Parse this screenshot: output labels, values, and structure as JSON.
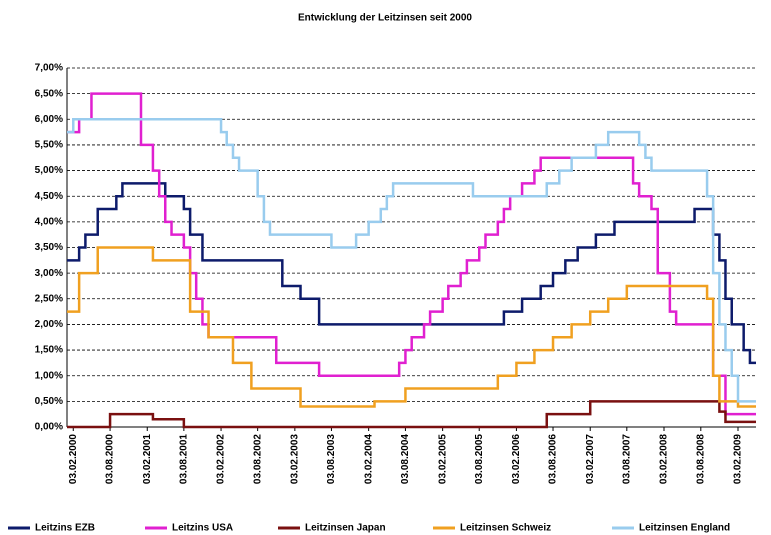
{
  "chart_data": {
    "type": "line",
    "title": "Entwicklung der Leitzinsen seit 2000",
    "x": [
      "2000-01-03",
      "2000-02-03",
      "2000-03-03",
      "2000-04-03",
      "2000-05-03",
      "2000-06-03",
      "2000-07-03",
      "2000-08-03",
      "2000-09-03",
      "2000-10-03",
      "2000-11-03",
      "2000-12-03",
      "2001-01-03",
      "2001-02-03",
      "2001-03-03",
      "2001-04-03",
      "2001-05-03",
      "2001-06-03",
      "2001-07-03",
      "2001-08-03",
      "2001-09-03",
      "2001-10-03",
      "2001-11-03",
      "2001-12-03",
      "2002-01-03",
      "2002-02-03",
      "2002-03-03",
      "2002-04-03",
      "2002-05-03",
      "2002-06-03",
      "2002-07-03",
      "2002-08-03",
      "2002-09-03",
      "2002-10-03",
      "2002-11-03",
      "2002-12-03",
      "2003-01-03",
      "2003-02-03",
      "2003-03-03",
      "2003-04-03",
      "2003-05-03",
      "2003-06-03",
      "2003-07-03",
      "2003-08-03",
      "2003-09-03",
      "2003-10-03",
      "2003-11-03",
      "2003-12-03",
      "2004-01-03",
      "2004-02-03",
      "2004-03-03",
      "2004-04-03",
      "2004-05-03",
      "2004-06-03",
      "2004-07-03",
      "2004-08-03",
      "2004-09-03",
      "2004-10-03",
      "2004-11-03",
      "2004-12-03",
      "2005-01-03",
      "2005-02-03",
      "2005-03-03",
      "2005-04-03",
      "2005-05-03",
      "2005-06-03",
      "2005-07-03",
      "2005-08-03",
      "2005-09-03",
      "2005-10-03",
      "2005-11-03",
      "2005-12-03",
      "2006-01-03",
      "2006-02-03",
      "2006-03-03",
      "2006-04-03",
      "2006-05-03",
      "2006-06-03",
      "2006-07-03",
      "2006-08-03",
      "2006-09-03",
      "2006-10-03",
      "2006-11-03",
      "2006-12-03",
      "2007-01-03",
      "2007-02-03",
      "2007-03-03",
      "2007-04-03",
      "2007-05-03",
      "2007-06-03",
      "2007-07-03",
      "2007-08-03",
      "2007-09-03",
      "2007-10-03",
      "2007-11-03",
      "2007-12-03",
      "2008-01-03",
      "2008-02-03",
      "2008-03-03",
      "2008-04-03",
      "2008-05-03",
      "2008-06-03",
      "2008-07-03",
      "2008-08-03",
      "2008-09-03",
      "2008-10-03",
      "2008-11-03",
      "2008-12-03",
      "2009-01-03",
      "2009-02-03",
      "2009-03-03",
      "2009-04-03"
    ],
    "series": [
      {
        "name": "Leitzins EZB",
        "color": "#0d1b6b",
        "values": [
          3.25,
          3.25,
          3.5,
          3.75,
          3.75,
          4.25,
          4.25,
          4.25,
          4.5,
          4.75,
          4.75,
          4.75,
          4.75,
          4.75,
          4.75,
          4.75,
          4.5,
          4.5,
          4.5,
          4.25,
          3.75,
          3.75,
          3.25,
          3.25,
          3.25,
          3.25,
          3.25,
          3.25,
          3.25,
          3.25,
          3.25,
          3.25,
          3.25,
          3.25,
          3.25,
          2.75,
          2.75,
          2.75,
          2.5,
          2.5,
          2.5,
          2,
          2,
          2,
          2,
          2,
          2,
          2,
          2,
          2,
          2,
          2,
          2,
          2,
          2,
          2,
          2,
          2,
          2,
          2,
          2,
          2,
          2,
          2,
          2,
          2,
          2,
          2,
          2,
          2,
          2,
          2.25,
          2.25,
          2.25,
          2.5,
          2.5,
          2.5,
          2.75,
          2.75,
          3,
          3,
          3.25,
          3.25,
          3.5,
          3.5,
          3.5,
          3.75,
          3.75,
          3.75,
          4,
          4,
          4,
          4,
          4,
          4,
          4,
          4,
          4,
          4,
          4,
          4,
          4,
          4.25,
          4.25,
          4.25,
          3.75,
          3.25,
          2.5,
          2,
          2,
          1.5,
          1.25
        ]
      },
      {
        "name": "Leitzins USA",
        "color": "#e020d0",
        "values": [
          5.75,
          5.75,
          6,
          6,
          6.5,
          6.5,
          6.5,
          6.5,
          6.5,
          6.5,
          6.5,
          6.5,
          5.5,
          5.5,
          5,
          4.5,
          4,
          3.75,
          3.75,
          3.5,
          3,
          2.5,
          2,
          1.75,
          1.75,
          1.75,
          1.75,
          1.75,
          1.75,
          1.75,
          1.75,
          1.75,
          1.75,
          1.75,
          1.25,
          1.25,
          1.25,
          1.25,
          1.25,
          1.25,
          1.25,
          1,
          1,
          1,
          1,
          1,
          1,
          1,
          1,
          1,
          1,
          1,
          1,
          1,
          1.25,
          1.5,
          1.75,
          1.75,
          2,
          2.25,
          2.25,
          2.5,
          2.75,
          2.75,
          3,
          3.25,
          3.25,
          3.5,
          3.75,
          3.75,
          4,
          4.25,
          4.5,
          4.5,
          4.75,
          4.75,
          5,
          5.25,
          5.25,
          5.25,
          5.25,
          5.25,
          5.25,
          5.25,
          5.25,
          5.25,
          5.25,
          5.25,
          5.25,
          5.25,
          5.25,
          5.25,
          4.75,
          4.5,
          4.5,
          4.25,
          3,
          3,
          2.25,
          2,
          2,
          2,
          2,
          2,
          2,
          1,
          1,
          0.25,
          0.25,
          0.25,
          0.25,
          0.25
        ]
      },
      {
        "name": "Leitzinsen Japan",
        "color": "#7a1010",
        "values": [
          0,
          0,
          0,
          0,
          0,
          0,
          0,
          0.25,
          0.25,
          0.25,
          0.25,
          0.25,
          0.25,
          0.25,
          0.15,
          0.15,
          0.15,
          0.15,
          0.15,
          0,
          0,
          0,
          0,
          0,
          0,
          0,
          0,
          0,
          0,
          0,
          0,
          0,
          0,
          0,
          0,
          0,
          0,
          0,
          0,
          0,
          0,
          0,
          0,
          0,
          0,
          0,
          0,
          0,
          0,
          0,
          0,
          0,
          0,
          0,
          0,
          0,
          0,
          0,
          0,
          0,
          0,
          0,
          0,
          0,
          0,
          0,
          0,
          0,
          0,
          0,
          0,
          0,
          0,
          0,
          0,
          0,
          0,
          0,
          0.25,
          0.25,
          0.25,
          0.25,
          0.25,
          0.25,
          0.25,
          0.5,
          0.5,
          0.5,
          0.5,
          0.5,
          0.5,
          0.5,
          0.5,
          0.5,
          0.5,
          0.5,
          0.5,
          0.5,
          0.5,
          0.5,
          0.5,
          0.5,
          0.5,
          0.5,
          0.5,
          0.5,
          0.3,
          0.1,
          0.1,
          0.1,
          0.1,
          0.1
        ]
      },
      {
        "name": "Leitzinsen Schweiz",
        "color": "#f0a020",
        "values": [
          2.25,
          2.25,
          3,
          3,
          3,
          3.5,
          3.5,
          3.5,
          3.5,
          3.5,
          3.5,
          3.5,
          3.5,
          3.5,
          3.25,
          3.25,
          3.25,
          3.25,
          3.25,
          3.25,
          2.25,
          2.25,
          2.25,
          1.75,
          1.75,
          1.75,
          1.75,
          1.25,
          1.25,
          1.25,
          0.75,
          0.75,
          0.75,
          0.75,
          0.75,
          0.75,
          0.75,
          0.75,
          0.4,
          0.4,
          0.4,
          0.4,
          0.4,
          0.4,
          0.4,
          0.4,
          0.4,
          0.4,
          0.4,
          0.4,
          0.5,
          0.5,
          0.5,
          0.5,
          0.5,
          0.75,
          0.75,
          0.75,
          0.75,
          0.75,
          0.75,
          0.75,
          0.75,
          0.75,
          0.75,
          0.75,
          0.75,
          0.75,
          0.75,
          0.75,
          1,
          1,
          1,
          1.25,
          1.25,
          1.25,
          1.5,
          1.5,
          1.5,
          1.75,
          1.75,
          1.75,
          2,
          2,
          2,
          2.25,
          2.25,
          2.25,
          2.5,
          2.5,
          2.5,
          2.75,
          2.75,
          2.75,
          2.75,
          2.75,
          2.75,
          2.75,
          2.75,
          2.75,
          2.75,
          2.75,
          2.75,
          2.75,
          2.5,
          1,
          0.5,
          0.5,
          0.5,
          0.4,
          0.4,
          0.4
        ]
      },
      {
        "name": "Leitzinsen England",
        "color": "#99ccee",
        "values": [
          5.75,
          6,
          6,
          6,
          6,
          6,
          6,
          6,
          6,
          6,
          6,
          6,
          6,
          6,
          6,
          6,
          6,
          6,
          6,
          6,
          6,
          6,
          6,
          6,
          6,
          5.75,
          5.5,
          5.25,
          5,
          5,
          5,
          4.5,
          4,
          3.75,
          3.75,
          3.75,
          3.75,
          3.75,
          3.75,
          3.75,
          3.75,
          3.75,
          3.75,
          3.5,
          3.5,
          3.5,
          3.5,
          3.75,
          3.75,
          4,
          4,
          4.25,
          4.5,
          4.75,
          4.75,
          4.75,
          4.75,
          4.75,
          4.75,
          4.75,
          4.75,
          4.75,
          4.75,
          4.75,
          4.75,
          4.75,
          4.5,
          4.5,
          4.5,
          4.5,
          4.5,
          4.5,
          4.5,
          4.5,
          4.5,
          4.5,
          4.5,
          4.5,
          4.75,
          4.75,
          5,
          5,
          5.25,
          5.25,
          5.25,
          5.25,
          5.5,
          5.5,
          5.75,
          5.75,
          5.75,
          5.75,
          5.75,
          5.5,
          5.25,
          5,
          5,
          5,
          5,
          5,
          5,
          5,
          5,
          5,
          4.5,
          3,
          2,
          1.5,
          1,
          0.5,
          0.5,
          0.5
        ]
      }
    ],
    "xlim": [
      "2000-01-03",
      "2009-05-03"
    ],
    "xticks": [
      {
        "value": "2000-02-03",
        "label": "03.02.2000"
      },
      {
        "value": "2000-08-03",
        "label": "03.08.2000"
      },
      {
        "value": "2001-02-03",
        "label": "03.02.2001"
      },
      {
        "value": "2001-08-03",
        "label": "03.08.2001"
      },
      {
        "value": "2002-02-03",
        "label": "03.02.2002"
      },
      {
        "value": "2002-08-03",
        "label": "03.08.2002"
      },
      {
        "value": "2003-02-03",
        "label": "03.02.2003"
      },
      {
        "value": "2003-08-03",
        "label": "03.08.2003"
      },
      {
        "value": "2004-02-03",
        "label": "03.02.2004"
      },
      {
        "value": "2004-08-03",
        "label": "03.08.2004"
      },
      {
        "value": "2005-02-03",
        "label": "03.02.2005"
      },
      {
        "value": "2005-08-03",
        "label": "03.08.2005"
      },
      {
        "value": "2006-02-03",
        "label": "03.02.2006"
      },
      {
        "value": "2006-08-03",
        "label": "03.08.2006"
      },
      {
        "value": "2007-02-03",
        "label": "03.02.2007"
      },
      {
        "value": "2007-08-03",
        "label": "03.08.2007"
      },
      {
        "value": "2008-02-03",
        "label": "03.02.2008"
      },
      {
        "value": "2008-08-03",
        "label": "03.08.2008"
      },
      {
        "value": "2009-02-03",
        "label": "03.02.2009"
      }
    ],
    "ylim": [
      0,
      7
    ],
    "yticks": [
      {
        "value": 0,
        "label": "0,00%"
      },
      {
        "value": 0.5,
        "label": "0,50%"
      },
      {
        "value": 1,
        "label": "1,00%"
      },
      {
        "value": 1.5,
        "label": "1,50%"
      },
      {
        "value": 2,
        "label": "2,00%"
      },
      {
        "value": 2.5,
        "label": "2,50%"
      },
      {
        "value": 3,
        "label": "3,00%"
      },
      {
        "value": 3.5,
        "label": "3,50%"
      },
      {
        "value": 4,
        "label": "4,00%"
      },
      {
        "value": 4.5,
        "label": "4,50%"
      },
      {
        "value": 5,
        "label": "5,00%"
      },
      {
        "value": 5.5,
        "label": "5,50%"
      },
      {
        "value": 6,
        "label": "6,00%"
      },
      {
        "value": 6.5,
        "label": "6,50%"
      },
      {
        "value": 7,
        "label": "7,00%"
      }
    ],
    "grid": true,
    "step": true,
    "legend": "bottom"
  }
}
